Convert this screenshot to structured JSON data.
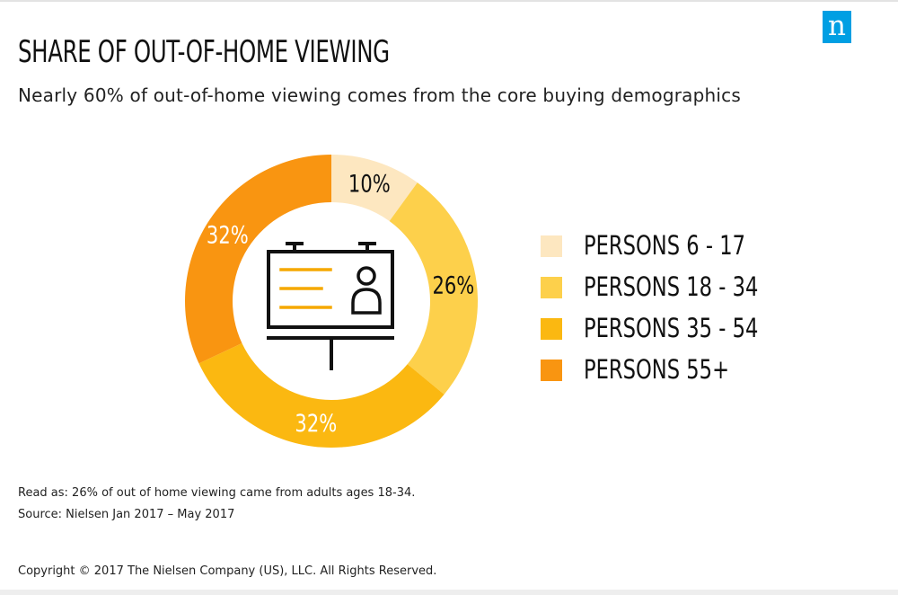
{
  "header": {
    "title": "SHARE OF OUT-OF-HOME VIEWING",
    "subtitle": "Nearly 60% of out-of-home viewing comes from the core buying demographics",
    "logo_letter": "n"
  },
  "chart_data": {
    "type": "donut",
    "title": "SHARE OF OUT-OF-HOME VIEWING",
    "categories": [
      "PERSONS 6 - 17",
      "PERSONS 18 - 34",
      "PERSONS 35 - 54",
      "PERSONS 55+"
    ],
    "values": [
      10,
      26,
      32,
      32
    ],
    "labels": [
      "10%",
      "26%",
      "32%",
      "32%"
    ],
    "colors": [
      "#fde7c0",
      "#fdd04b",
      "#fbb811",
      "#f99511"
    ],
    "legend_position": "right",
    "center_icon": "billboard-icon"
  },
  "legend": {
    "items": [
      {
        "label": "PERSONS 6 - 17",
        "color": "#fde7c0"
      },
      {
        "label": "PERSONS 18 - 34",
        "color": "#fdd04b"
      },
      {
        "label": "PERSONS 35 - 54",
        "color": "#fbb811"
      },
      {
        "label": "PERSONS 55+",
        "color": "#f99511"
      }
    ]
  },
  "footer": {
    "read_as": "Read as: 26% of out of home viewing came from adults ages 18-34.",
    "source": "Source: Nielsen Jan 2017 – May 2017",
    "copyright": "Copyright © 2017 The Nielsen Company (US), LLC. All Rights Reserved."
  },
  "colors": {
    "brand_blue": "#009fe3",
    "icon_accent": "#f5a800",
    "label_dark": "#111111",
    "label_light": "#ffffff"
  }
}
